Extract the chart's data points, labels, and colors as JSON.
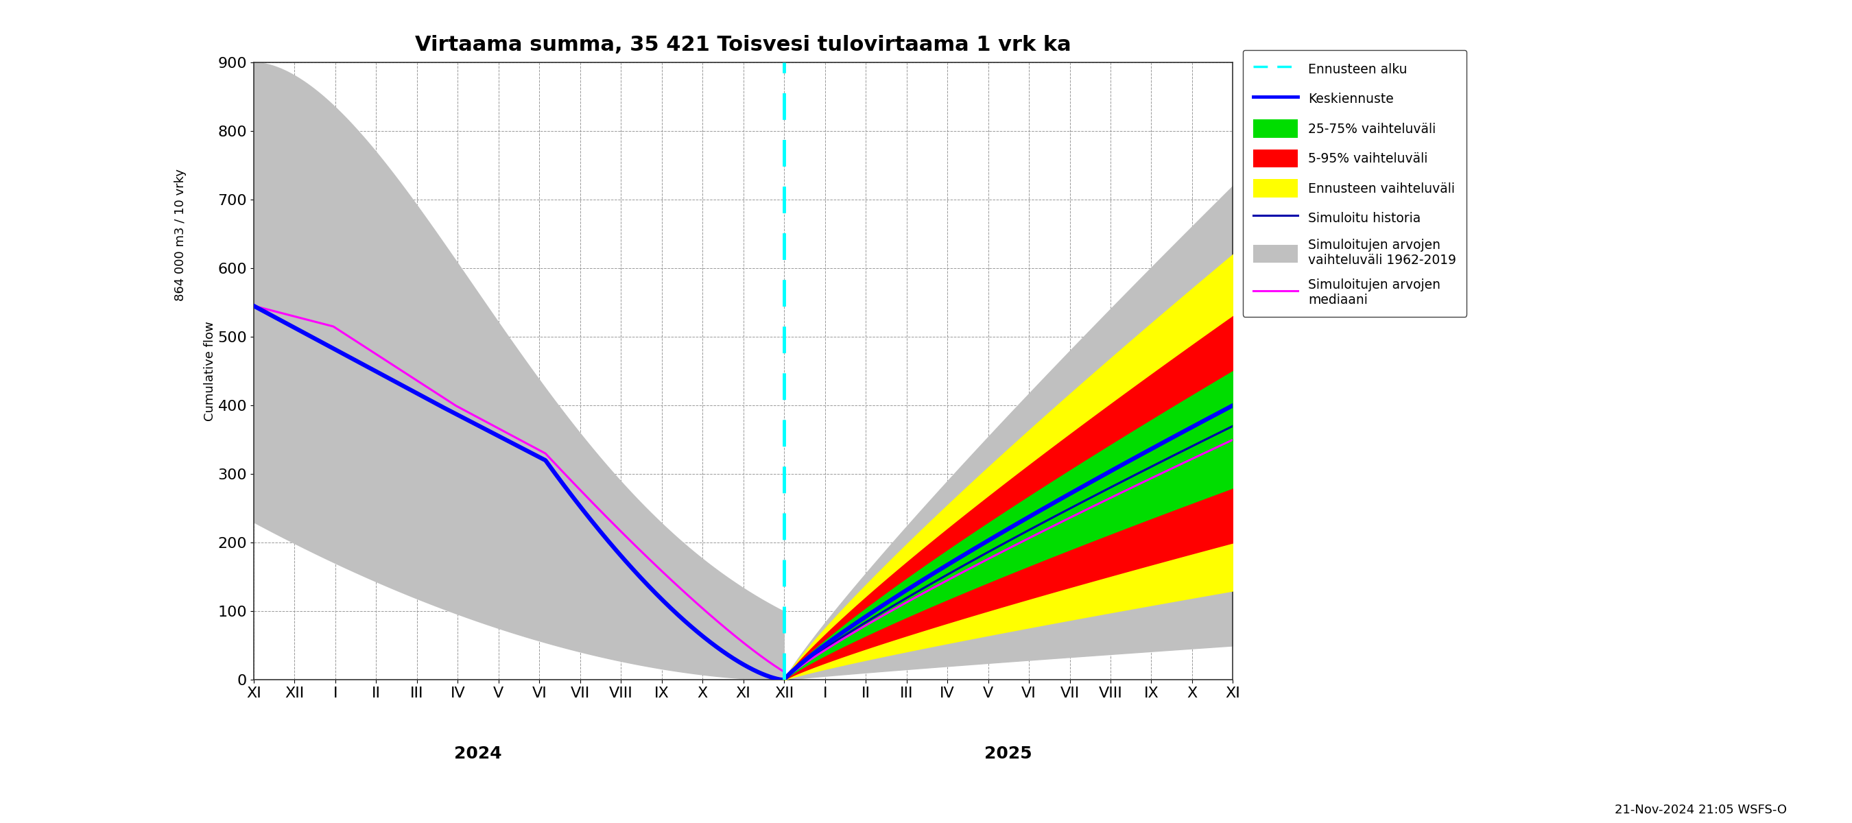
{
  "title": "Virtaama summa, 35 421 Toisvesi tulovirtaama 1 vrk ka",
  "ylabel_top": "864 000 m3 / 10 vrky",
  "ylabel_bottom": "Cumulative flow",
  "ylim": [
    0,
    900
  ],
  "yticks": [
    0,
    100,
    200,
    300,
    400,
    500,
    600,
    700,
    800,
    900
  ],
  "background_color": "#ffffff",
  "grid_color": "#999999",
  "footer_text": "21-Nov-2024 21:05 WSFS-O",
  "month_labels": [
    "XI",
    "XII",
    "I",
    "II",
    "III",
    "IV",
    "V",
    "VI",
    "VII",
    "VIII",
    "IX",
    "X",
    "XI",
    "XII",
    "I",
    "II",
    "III",
    "IV",
    "V",
    "VI",
    "VII",
    "VIII",
    "IX",
    "X",
    "XI"
  ],
  "color_gray": "#c0c0c0",
  "color_yellow": "#ffff00",
  "color_red": "#ff0000",
  "color_green": "#00dd00",
  "color_blue_thick": "#0000ff",
  "color_blue_thin": "#0000aa",
  "color_magenta": "#ff00ff",
  "color_cyan": "#00ffff",
  "legend_labels": [
    "Ennusteen alku",
    "Keskiennuste",
    "25-75% vaihteluväli",
    "5-95% vaihteluväli",
    "Ennusteen vaihteluväli",
    "Simuloitu historia",
    "Simuloitujen arvojen\nvaihteluväli 1962-2019",
    "Simuloitujen arvojen\nmediaani"
  ]
}
